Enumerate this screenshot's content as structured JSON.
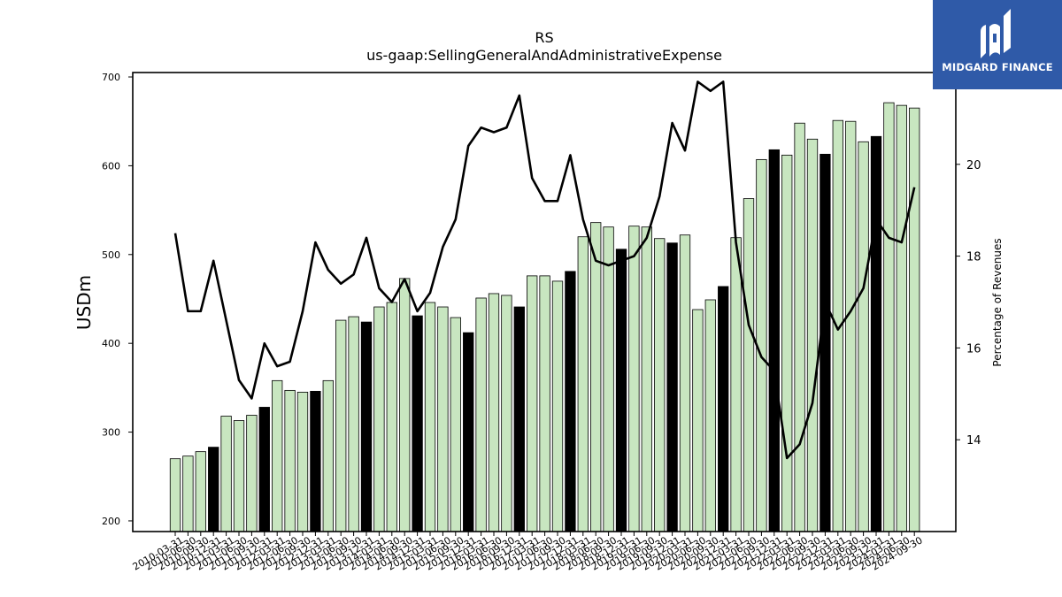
{
  "chart_data": {
    "type": "bar",
    "title": "RS",
    "subtitle": "us-gaap:SellingGeneralAndAdministrativeExpense",
    "ylabel": "USDm",
    "y2label": "Percentage of Revenues",
    "ylim": [
      188,
      705
    ],
    "y2lim": [
      12.0,
      22.0
    ],
    "yticks": [
      200,
      300,
      400,
      500,
      600,
      700
    ],
    "y2ticks": [
      14,
      16,
      18,
      20
    ],
    "grid": false,
    "colors": {
      "bar": "#c8e6c0",
      "bar_q4": "#000000",
      "line": "#000000"
    },
    "categories": [
      "2010-03-31",
      "2010-06-30",
      "2010-09-30",
      "2010-12-31",
      "2011-03-31",
      "2011-06-30",
      "2011-09-30",
      "2011-12-31",
      "2012-03-31",
      "2012-06-30",
      "2012-09-30",
      "2012-12-31",
      "2013-03-31",
      "2013-06-30",
      "2013-09-30",
      "2013-12-31",
      "2014-03-31",
      "2014-06-30",
      "2014-09-30",
      "2014-12-31",
      "2015-03-31",
      "2015-06-30",
      "2015-09-30",
      "2015-12-31",
      "2016-03-31",
      "2016-06-30",
      "2016-09-30",
      "2016-12-31",
      "2017-03-31",
      "2017-06-30",
      "2017-09-30",
      "2017-12-31",
      "2018-03-31",
      "2018-06-30",
      "2018-09-30",
      "2018-12-31",
      "2019-03-31",
      "2019-06-30",
      "2019-09-30",
      "2019-12-31",
      "2020-03-31",
      "2020-06-30",
      "2020-09-30",
      "2020-12-31",
      "2021-03-31",
      "2021-06-30",
      "2021-09-30",
      "2021-12-31",
      "2022-03-31",
      "2022-06-30",
      "2022-09-30",
      "2022-12-31",
      "2023-03-31",
      "2023-06-30",
      "2023-09-30",
      "2023-12-31",
      "2024-03-31",
      "2024-06-30",
      "2024-09-30"
    ],
    "values": [
      270,
      273,
      278,
      283,
      318,
      313,
      319,
      328,
      358,
      347,
      345,
      346,
      358,
      426,
      430,
      424,
      441,
      446,
      473,
      431,
      446,
      441,
      429,
      412,
      451,
      456,
      454,
      441,
      476,
      476,
      470,
      481,
      520,
      536,
      531,
      506,
      532,
      531,
      518,
      513,
      522,
      438,
      449,
      464,
      519,
      563,
      607,
      618,
      612,
      648,
      630,
      613,
      651,
      650,
      627,
      633,
      671,
      668,
      665
    ],
    "pct_of_revenues": [
      18.5,
      16.8,
      16.8,
      17.9,
      16.6,
      15.3,
      14.9,
      16.1,
      15.6,
      15.7,
      16.8,
      18.3,
      17.7,
      17.4,
      17.6,
      18.4,
      17.3,
      17.0,
      17.5,
      16.8,
      17.2,
      18.2,
      18.8,
      20.4,
      20.8,
      20.7,
      20.8,
      21.5,
      19.7,
      19.2,
      19.2,
      20.2,
      18.8,
      17.9,
      17.8,
      17.9,
      18.0,
      18.4,
      19.3,
      20.9,
      20.3,
      21.8,
      21.6,
      21.8,
      18.3,
      16.5,
      15.8,
      15.5,
      13.6,
      13.9,
      14.8,
      17.0,
      16.4,
      16.8,
      17.3,
      18.8,
      18.4,
      18.3,
      19.5
    ]
  },
  "logo": {
    "text": "MIDGARD FINANCE",
    "color": "#2f5aa8"
  }
}
